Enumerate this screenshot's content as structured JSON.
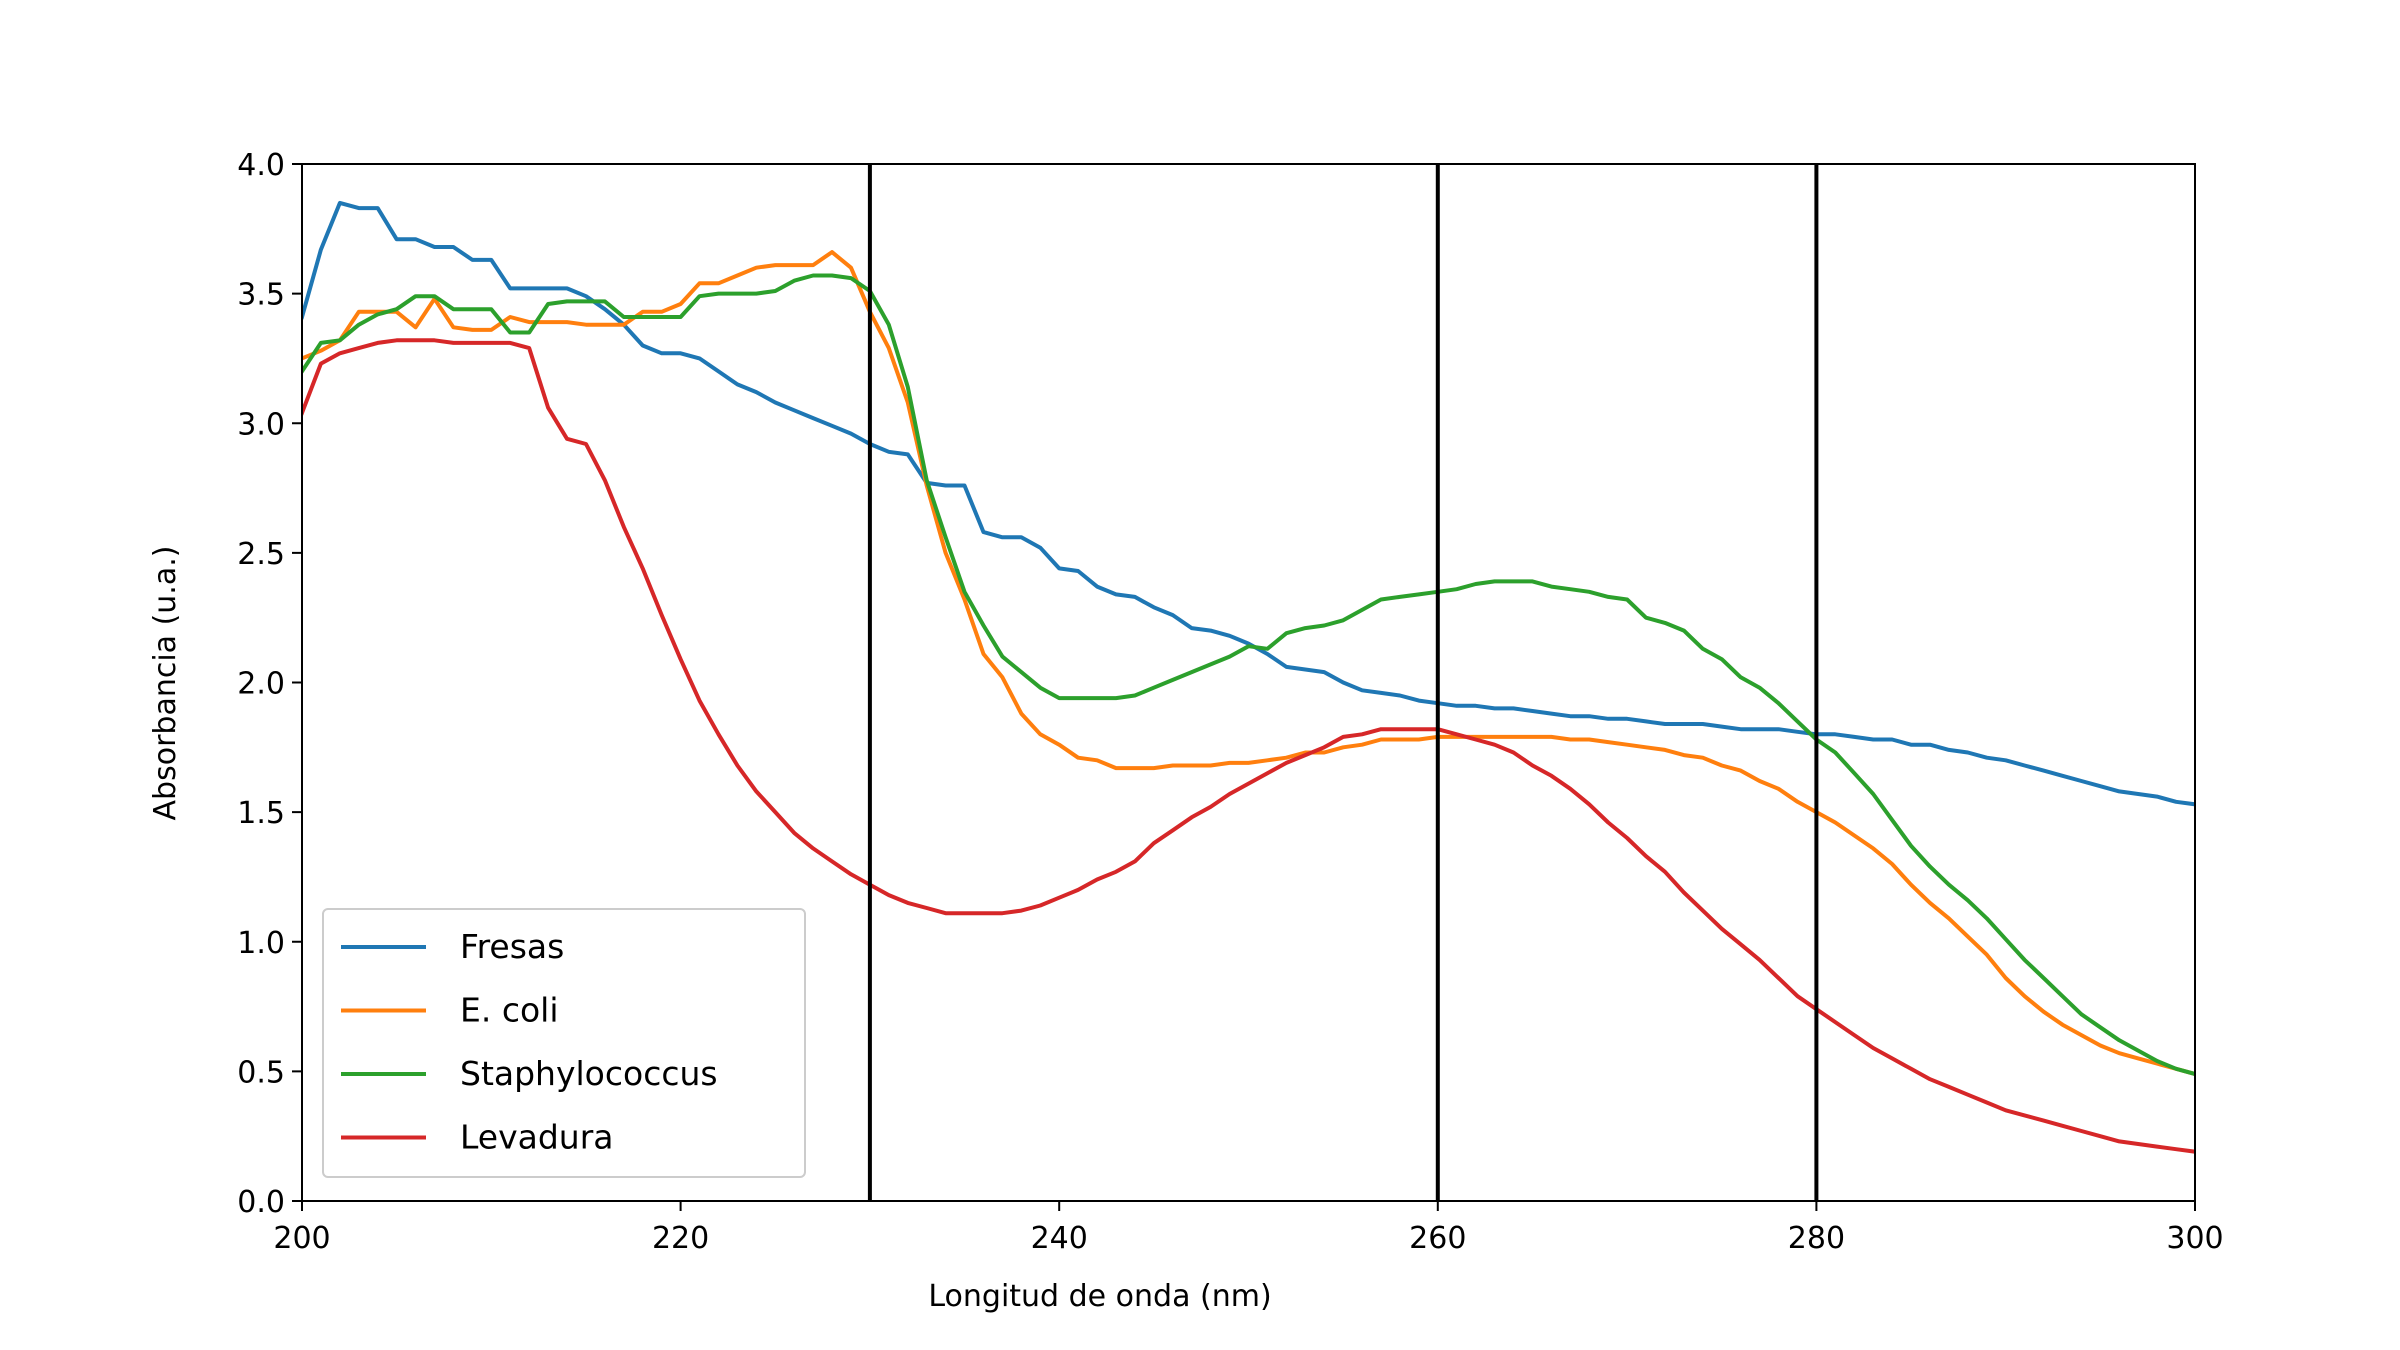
{
  "chart_data": {
    "type": "line",
    "title": "",
    "xlabel": "Longitud de onda (nm)",
    "ylabel": "Absorbancia (u.a.)",
    "xlim": [
      200,
      300
    ],
    "ylim": [
      0,
      4
    ],
    "xticks": [
      200,
      220,
      240,
      260,
      280,
      300
    ],
    "yticks": [
      0.0,
      0.5,
      1.0,
      1.5,
      2.0,
      2.5,
      3.0,
      3.5,
      4.0
    ],
    "xtick_labels": [
      "200",
      "220",
      "240",
      "260",
      "280",
      "300"
    ],
    "ytick_labels": [
      "0.0",
      "0.5",
      "1.0",
      "1.5",
      "2.0",
      "2.5",
      "3.0",
      "3.5",
      "4.0"
    ],
    "vlines": [
      230,
      260,
      280
    ],
    "grid": false,
    "legend_position": "lower-left",
    "x": [
      200,
      201,
      202,
      203,
      204,
      205,
      206,
      207,
      208,
      209,
      210,
      211,
      212,
      213,
      214,
      215,
      216,
      217,
      218,
      219,
      220,
      221,
      222,
      223,
      224,
      225,
      226,
      227,
      228,
      229,
      230,
      231,
      232,
      233,
      234,
      235,
      236,
      237,
      238,
      239,
      240,
      241,
      242,
      243,
      244,
      245,
      246,
      247,
      248,
      249,
      250,
      251,
      252,
      253,
      254,
      255,
      256,
      257,
      258,
      259,
      260,
      261,
      262,
      263,
      264,
      265,
      266,
      267,
      268,
      269,
      270,
      271,
      272,
      273,
      274,
      275,
      276,
      277,
      278,
      279,
      280,
      281,
      282,
      283,
      284,
      285,
      286,
      287,
      288,
      289,
      290,
      291,
      292,
      293,
      294,
      295,
      296,
      297,
      298,
      299,
      300
    ],
    "series": [
      {
        "name": "Fresas",
        "color": "#1f77b4",
        "values": [
          3.41,
          3.67,
          3.85,
          3.83,
          3.83,
          3.71,
          3.71,
          3.68,
          3.68,
          3.63,
          3.63,
          3.52,
          3.52,
          3.52,
          3.52,
          3.49,
          3.44,
          3.38,
          3.3,
          3.27,
          3.27,
          3.25,
          3.2,
          3.15,
          3.12,
          3.08,
          3.05,
          3.02,
          2.99,
          2.96,
          2.92,
          2.89,
          2.88,
          2.77,
          2.76,
          2.76,
          2.58,
          2.56,
          2.56,
          2.52,
          2.44,
          2.43,
          2.37,
          2.34,
          2.33,
          2.29,
          2.26,
          2.21,
          2.2,
          2.18,
          2.15,
          2.11,
          2.06,
          2.05,
          2.04,
          2.0,
          1.97,
          1.96,
          1.95,
          1.93,
          1.92,
          1.91,
          1.91,
          1.9,
          1.9,
          1.89,
          1.88,
          1.87,
          1.87,
          1.86,
          1.86,
          1.85,
          1.84,
          1.84,
          1.84,
          1.83,
          1.82,
          1.82,
          1.82,
          1.81,
          1.8,
          1.8,
          1.79,
          1.78,
          1.78,
          1.76,
          1.76,
          1.74,
          1.73,
          1.71,
          1.7,
          1.68,
          1.66,
          1.64,
          1.62,
          1.6,
          1.58,
          1.57,
          1.56,
          1.54,
          1.53
        ]
      },
      {
        "name": "E. coli",
        "color": "#ff7f0e",
        "values": [
          3.25,
          3.28,
          3.32,
          3.43,
          3.43,
          3.43,
          3.37,
          3.48,
          3.37,
          3.36,
          3.36,
          3.41,
          3.39,
          3.39,
          3.39,
          3.38,
          3.38,
          3.38,
          3.43,
          3.43,
          3.46,
          3.54,
          3.54,
          3.57,
          3.6,
          3.61,
          3.61,
          3.61,
          3.66,
          3.6,
          3.43,
          3.29,
          3.08,
          2.76,
          2.5,
          2.32,
          2.11,
          2.02,
          1.88,
          1.8,
          1.76,
          1.71,
          1.7,
          1.67,
          1.67,
          1.67,
          1.68,
          1.68,
          1.68,
          1.69,
          1.69,
          1.7,
          1.71,
          1.73,
          1.73,
          1.75,
          1.76,
          1.78,
          1.78,
          1.78,
          1.79,
          1.79,
          1.79,
          1.79,
          1.79,
          1.79,
          1.79,
          1.78,
          1.78,
          1.77,
          1.76,
          1.75,
          1.74,
          1.72,
          1.71,
          1.68,
          1.66,
          1.62,
          1.59,
          1.54,
          1.5,
          1.46,
          1.41,
          1.36,
          1.3,
          1.22,
          1.15,
          1.09,
          1.02,
          0.95,
          0.86,
          0.79,
          0.73,
          0.68,
          0.64,
          0.6,
          0.57,
          0.55,
          0.53,
          0.51,
          0.49
        ]
      },
      {
        "name": "Staphylococcus",
        "color": "#2ca02c",
        "values": [
          3.2,
          3.31,
          3.32,
          3.38,
          3.42,
          3.44,
          3.49,
          3.49,
          3.44,
          3.44,
          3.44,
          3.35,
          3.35,
          3.46,
          3.47,
          3.47,
          3.47,
          3.41,
          3.41,
          3.41,
          3.41,
          3.49,
          3.5,
          3.5,
          3.5,
          3.51,
          3.55,
          3.57,
          3.57,
          3.56,
          3.51,
          3.38,
          3.14,
          2.78,
          2.56,
          2.35,
          2.22,
          2.1,
          2.04,
          1.98,
          1.94,
          1.94,
          1.94,
          1.94,
          1.95,
          1.98,
          2.01,
          2.04,
          2.07,
          2.1,
          2.14,
          2.13,
          2.19,
          2.21,
          2.22,
          2.24,
          2.28,
          2.32,
          2.33,
          2.34,
          2.35,
          2.36,
          2.38,
          2.39,
          2.39,
          2.39,
          2.37,
          2.36,
          2.35,
          2.33,
          2.32,
          2.25,
          2.23,
          2.2,
          2.13,
          2.09,
          2.02,
          1.98,
          1.92,
          1.85,
          1.78,
          1.73,
          1.65,
          1.57,
          1.47,
          1.37,
          1.29,
          1.22,
          1.16,
          1.09,
          1.01,
          0.93,
          0.86,
          0.79,
          0.72,
          0.67,
          0.62,
          0.58,
          0.54,
          0.51,
          0.49
        ]
      },
      {
        "name": "Levadura",
        "color": "#d62728",
        "values": [
          3.04,
          3.23,
          3.27,
          3.29,
          3.31,
          3.32,
          3.32,
          3.32,
          3.31,
          3.31,
          3.31,
          3.31,
          3.29,
          3.06,
          2.94,
          2.92,
          2.78,
          2.6,
          2.44,
          2.26,
          2.09,
          1.93,
          1.8,
          1.68,
          1.58,
          1.5,
          1.42,
          1.36,
          1.31,
          1.26,
          1.22,
          1.18,
          1.15,
          1.13,
          1.11,
          1.11,
          1.11,
          1.11,
          1.12,
          1.14,
          1.17,
          1.2,
          1.24,
          1.27,
          1.31,
          1.38,
          1.43,
          1.48,
          1.52,
          1.57,
          1.61,
          1.65,
          1.69,
          1.72,
          1.75,
          1.79,
          1.8,
          1.82,
          1.82,
          1.82,
          1.82,
          1.8,
          1.78,
          1.76,
          1.73,
          1.68,
          1.64,
          1.59,
          1.53,
          1.46,
          1.4,
          1.33,
          1.27,
          1.19,
          1.12,
          1.05,
          0.99,
          0.93,
          0.86,
          0.79,
          0.74,
          0.69,
          0.64,
          0.59,
          0.55,
          0.51,
          0.47,
          0.44,
          0.41,
          0.38,
          0.35,
          0.33,
          0.31,
          0.29,
          0.27,
          0.25,
          0.23,
          0.22,
          0.21,
          0.2,
          0.19
        ]
      }
    ]
  }
}
